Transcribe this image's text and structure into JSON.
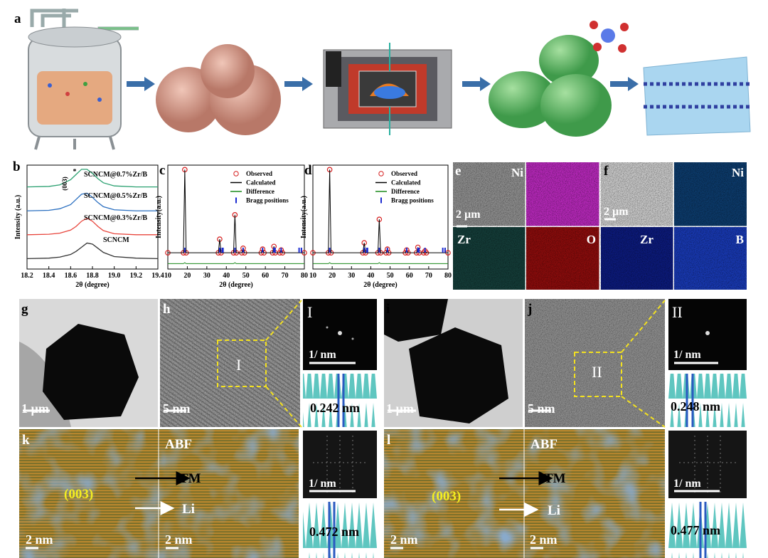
{
  "panel_labels": [
    "a",
    "b",
    "c",
    "d",
    "e",
    "f",
    "g",
    "h",
    "i",
    "j",
    "k",
    "l"
  ],
  "map_labels": [
    "Ni",
    "Zr",
    "O",
    "Ni",
    "Zr",
    "B"
  ],
  "scale_bars": [
    "2 µm",
    "2 µm",
    "1 µm",
    "5 nm",
    "1/ nm",
    "1 µm",
    "5 nm",
    "1/ nm",
    "2 nm",
    "2 nm",
    "1/ nm",
    "2 nm",
    "2 nm",
    "1/ nm"
  ],
  "roi_labels": [
    "I",
    "II"
  ],
  "fft_labels": [
    "I",
    "II"
  ],
  "spacings": [
    "0.242 nm",
    "0.248 nm",
    "0.472 nm",
    "0.477 nm"
  ],
  "abf_labels": [
    "ABF",
    "ABF"
  ],
  "tm_labels": [
    "TM",
    "TM"
  ],
  "li_labels": [
    "Li",
    "Li"
  ],
  "plane_labels": [
    "(003)",
    "(003)"
  ],
  "chart_data": [
    {
      "type": "line",
      "x_label": "2θ (degree)",
      "y_label": "Intensity (a.u.)",
      "annotations": [
        "(003)",
        "*"
      ],
      "x": [
        18.2,
        18.4,
        18.5,
        18.6,
        18.65,
        18.7,
        18.75,
        18.8,
        18.85,
        18.9,
        19.0,
        19.2,
        19.4
      ],
      "xlim": [
        18.2,
        19.4
      ],
      "xticks": [
        18.2,
        18.4,
        18.6,
        18.8,
        {
          "value": 19,
          "label": "19.0"
        },
        19.2,
        19.4
      ],
      "ylim": [
        0,
        10
      ],
      "series": [
        {
          "name": "SCNCM",
          "color": "#333333",
          "values": [
            1,
            1.05,
            1.15,
            1.4,
            1.7,
            2.1,
            2.5,
            2.4,
            2.0,
            1.6,
            1.2,
            1.05,
            1
          ]
        },
        {
          "name": "SCNCM@0.3%Zr/B",
          "color": "#e8453c",
          "values": [
            3.3,
            3.35,
            3.45,
            3.75,
            4.1,
            4.6,
            4.9,
            4.6,
            4.1,
            3.7,
            3.4,
            3.3,
            3.3
          ]
        },
        {
          "name": "SCNCM@0.5%Zr/B",
          "color": "#2a6fc0",
          "values": [
            5.6,
            5.65,
            5.8,
            6.2,
            6.7,
            7.2,
            7.3,
            6.9,
            6.4,
            6.0,
            5.7,
            5.6,
            5.6
          ]
        },
        {
          "name": "SCNCM@0.7%Zr/B",
          "color": "#2aa070",
          "values": [
            7.9,
            7.95,
            8.1,
            8.6,
            9.1,
            9.6,
            9.6,
            9.2,
            8.7,
            8.3,
            8.0,
            7.9,
            7.9
          ]
        }
      ]
    },
    {
      "type": "line",
      "x_label": "2θ (degree)",
      "y_label": "Intensity(a.u.)",
      "x": [
        10,
        18,
        18.7,
        19.4,
        35.9,
        36.6,
        37.3,
        43.7,
        44.4,
        45.1,
        47.9,
        48.6,
        49.3,
        57.9,
        58.6,
        59.3,
        63.7,
        64.4,
        65.1,
        67.4,
        68.1,
        68.8,
        80
      ],
      "xlim": [
        10,
        80
      ],
      "xticks": [
        10,
        20,
        30,
        40,
        50,
        60,
        70,
        80
      ],
      "ylim": [
        -15,
        100
      ],
      "series": [
        {
          "name": "Observed",
          "color": "#d62020",
          "mode": "markers",
          "values": [
            3,
            3,
            95,
            3,
            3,
            18,
            3,
            3,
            45,
            3,
            3,
            8,
            3,
            3,
            7,
            3,
            3,
            10,
            3,
            3,
            6,
            3,
            3
          ]
        },
        {
          "name": "Calculated",
          "color": "#000000",
          "mode": "line",
          "values": [
            3,
            3,
            95,
            3,
            3,
            18,
            3,
            3,
            45,
            3,
            3,
            8,
            3,
            3,
            7,
            3,
            3,
            10,
            3,
            3,
            6,
            3,
            3
          ]
        },
        {
          "name": "Difference",
          "color": "#1a8a1a",
          "mode": "line",
          "values": [
            -9,
            -9,
            -8,
            -9,
            -9,
            -9,
            -9,
            -9,
            -8,
            -9,
            -9,
            -9,
            -9,
            -9,
            -9,
            -9,
            -9,
            -9,
            -9,
            -9,
            -9,
            -9,
            -9
          ]
        }
      ],
      "bragg": {
        "name": "Bragg positions",
        "color": "#1a2ad0",
        "positions": [
          18.7,
          36.6,
          37.9,
          38.3,
          44.4,
          48.6,
          58.6,
          64.4,
          65,
          68.1,
          77.3,
          78.5
        ]
      }
    },
    {
      "type": "line",
      "x_label": "2θ (degree)",
      "y_label": "Intensity(a.u.)",
      "x": [
        10,
        18,
        18.7,
        19.4,
        35.9,
        36.6,
        37.3,
        43.7,
        44.4,
        45.1,
        47.9,
        48.6,
        49.3,
        57.9,
        58.6,
        59.3,
        63.7,
        64.4,
        65.1,
        67.4,
        68.1,
        68.8,
        80
      ],
      "xlim": [
        10,
        80
      ],
      "xticks": [
        10,
        20,
        30,
        40,
        50,
        60,
        70,
        80
      ],
      "ylim": [
        -15,
        100
      ],
      "series": [
        {
          "name": "Observed",
          "color": "#d62020",
          "mode": "markers",
          "values": [
            3,
            3,
            95,
            3,
            3,
            14,
            3,
            3,
            40,
            3,
            3,
            7,
            3,
            3,
            6,
            3,
            3,
            9,
            3,
            3,
            5,
            3,
            3
          ]
        },
        {
          "name": "Calculated",
          "color": "#000000",
          "mode": "line",
          "values": [
            3,
            3,
            95,
            3,
            3,
            14,
            3,
            3,
            40,
            3,
            3,
            7,
            3,
            3,
            6,
            3,
            3,
            9,
            3,
            3,
            5,
            3,
            3
          ]
        },
        {
          "name": "Difference",
          "color": "#1a8a1a",
          "mode": "line",
          "values": [
            -9,
            -9,
            -8,
            -9,
            -9,
            -9,
            -9,
            -9,
            -8,
            -9,
            -9,
            -9,
            -9,
            -9,
            -9,
            -9,
            -9,
            -9,
            -9,
            -9,
            -9,
            -9,
            -9
          ]
        }
      ],
      "bragg": {
        "name": "Bragg positions",
        "color": "#1a2ad0",
        "positions": [
          18.7,
          36.6,
          37.9,
          38.3,
          44.4,
          48.6,
          58.6,
          64.4,
          65,
          68.1,
          77.3,
          78.5
        ]
      }
    }
  ]
}
